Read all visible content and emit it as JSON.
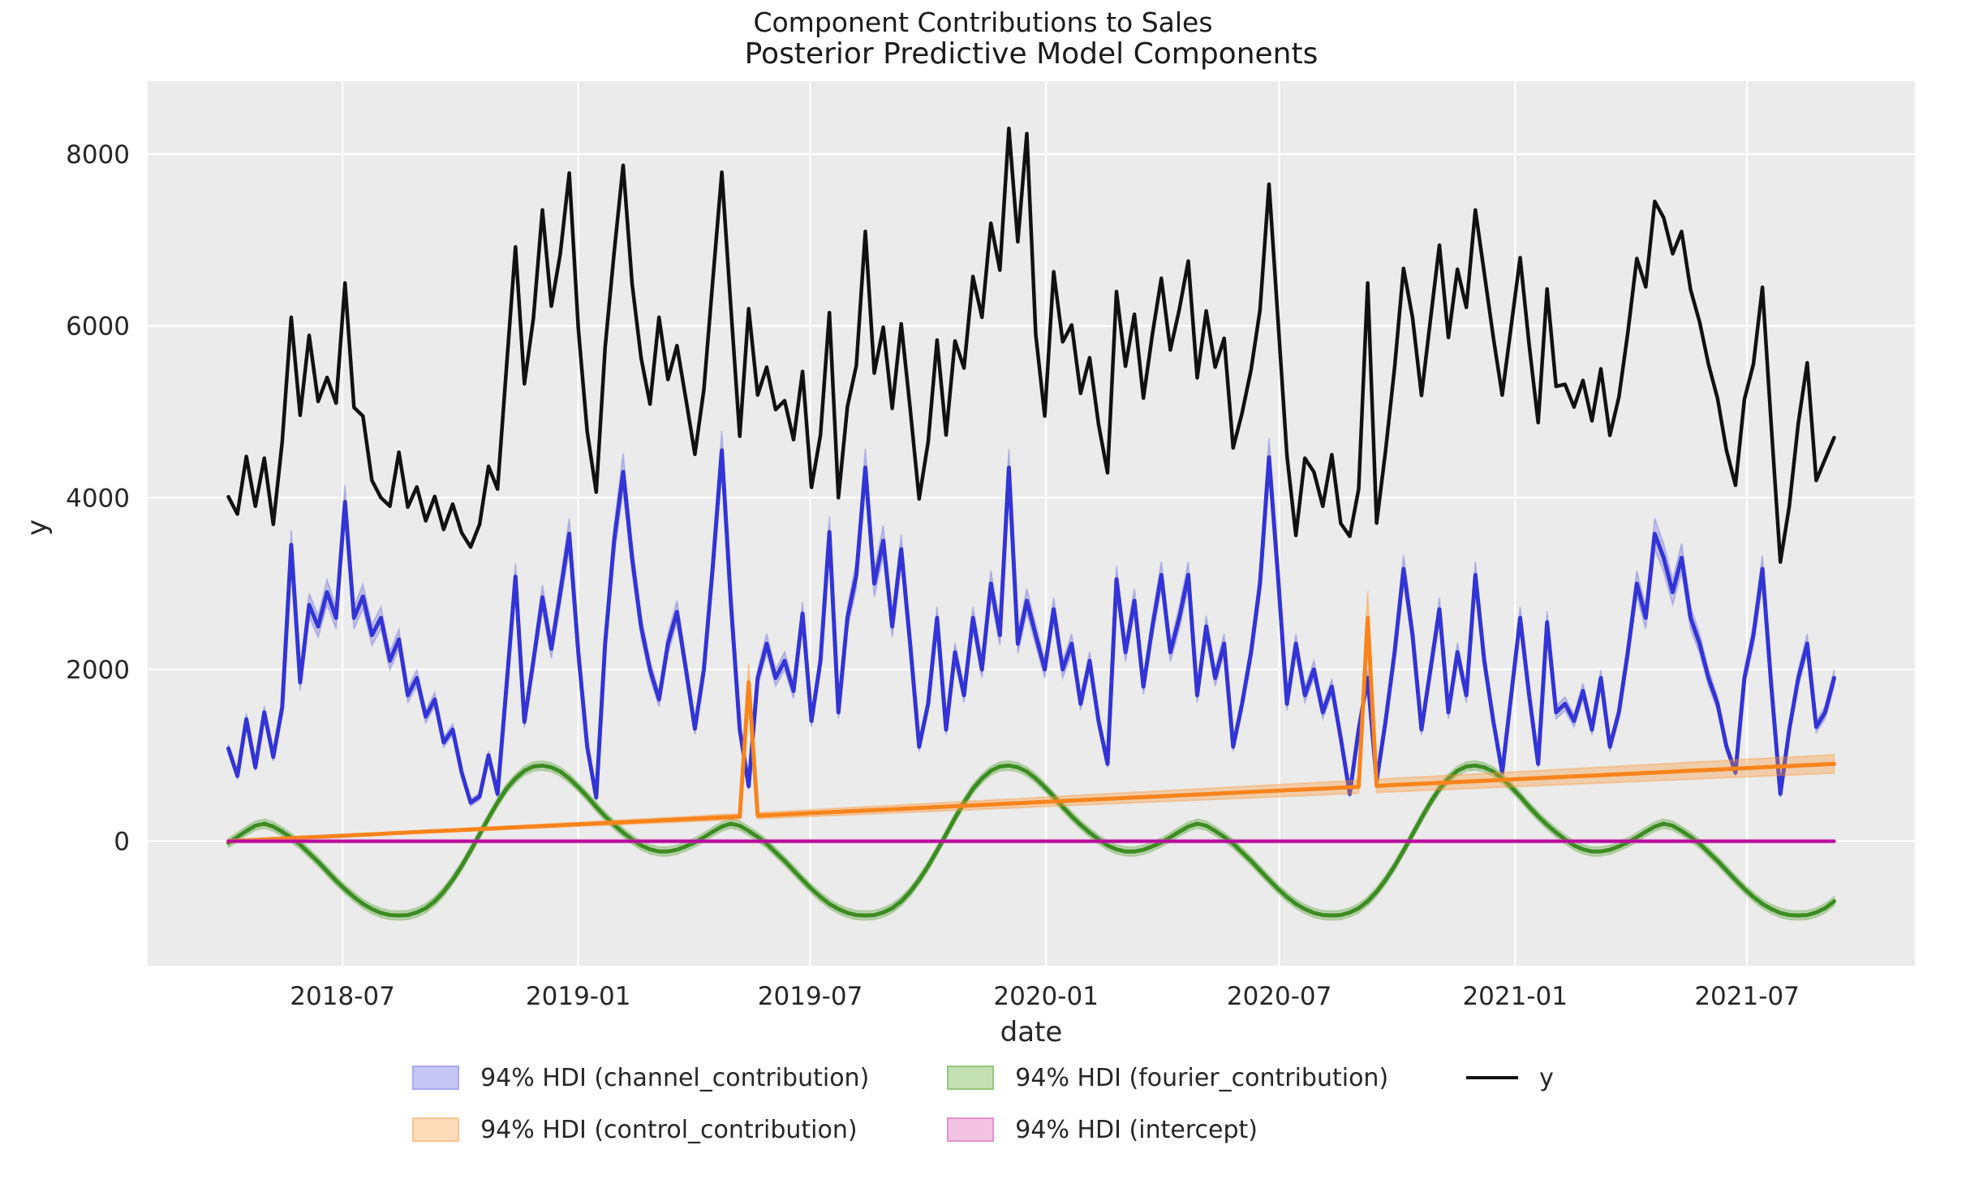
{
  "figure": {
    "suptitle": "Component Contributions to Sales",
    "title": "Posterior Predictive Model Components",
    "xlabel": "date",
    "ylabel": "y"
  },
  "legend": {
    "items": [
      {
        "id": "channel",
        "label": "94% HDI (channel_contribution)",
        "swatch_fill": "#c6c6f4",
        "swatch_edge": "#a9a9ee",
        "kind": "patch"
      },
      {
        "id": "control",
        "label": "94% HDI (control_contribution)",
        "swatch_fill": "#fcdcb9",
        "swatch_edge": "#f7c48e",
        "kind": "patch"
      },
      {
        "id": "fourier",
        "label": "94% HDI (fourier_contribution)",
        "swatch_fill": "#c3e0b3",
        "swatch_edge": "#94c77f",
        "kind": "patch"
      },
      {
        "id": "intercept",
        "label": "94% HDI (intercept)",
        "swatch_fill": "#f2c3e2",
        "swatch_edge": "#e391cb",
        "kind": "patch"
      },
      {
        "id": "y",
        "label": "y",
        "swatch_fill": "#111111",
        "swatch_edge": "#111111",
        "kind": "line"
      }
    ]
  },
  "chart_data": {
    "type": "line",
    "suptitle": "Component Contributions to Sales",
    "title": "Posterior Predictive Model Components",
    "xlabel": "date",
    "ylabel": "y",
    "grid": true,
    "legend_position": "below",
    "theme": {
      "axes_bg": "#ebebeb",
      "grid_color": "#ffffff",
      "tick_color": "#262626"
    },
    "x": {
      "start_date": "2018-04-03",
      "freq_days": 7,
      "n": 180
    },
    "xlim_days": [
      -63,
      1316
    ],
    "ylim": [
      -1450,
      8850
    ],
    "yticks": [
      0,
      2000,
      4000,
      6000,
      8000
    ],
    "xticks": [
      {
        "day": 89,
        "label": "2018-07"
      },
      {
        "day": 273,
        "label": "2019-01"
      },
      {
        "day": 454,
        "label": "2019-07"
      },
      {
        "day": 638,
        "label": "2020-01"
      },
      {
        "day": 820,
        "label": "2020-07"
      },
      {
        "day": 1004,
        "label": "2021-01"
      },
      {
        "day": 1185,
        "label": "2021-07"
      }
    ],
    "draw_order": [
      "channel_contribution",
      "fourier_contribution",
      "control_contribution",
      "intercept",
      "y"
    ],
    "series": [
      {
        "name": "y",
        "legend": "y",
        "color": "#111111",
        "linewidth": 4.5,
        "values": [
          4010,
          3810,
          4480,
          3900,
          4460,
          3690,
          4650,
          6100,
          4960,
          5890,
          5120,
          5400,
          5100,
          6500,
          5050,
          4950,
          4200,
          4000,
          3900,
          4530,
          3890,
          4125,
          3730,
          4015,
          3630,
          3925,
          3590,
          3425,
          3690,
          4365,
          4100,
          5515,
          6920,
          5325,
          6090,
          7350,
          6230,
          6845,
          7780,
          5975,
          4770,
          4065,
          5750,
          6855,
          7870,
          6495,
          5630,
          5090,
          6100,
          5375,
          5770,
          5145,
          4505,
          5260,
          6530,
          7790,
          6235,
          4715,
          6200,
          5195,
          5520,
          5025,
          5130,
          4675,
          5470,
          4120,
          4730,
          6155,
          4000,
          5060,
          5540,
          7100,
          5450,
          5985,
          5040,
          6025,
          5040,
          3985,
          4650,
          5835,
          4730,
          5825,
          5510,
          6575,
          6100,
          7195,
          6650,
          8300,
          6980,
          8240,
          5900,
          4950,
          6630,
          5815,
          6010,
          5215,
          5630,
          4855,
          4290,
          6400,
          5530,
          6135,
          5160,
          5905,
          6555,
          5720,
          6190,
          6755,
          5395,
          6175,
          5520,
          5855,
          4580,
          4985,
          5490,
          6185,
          7650,
          6080,
          4490,
          3560,
          4460,
          4300,
          3900,
          4500,
          3700,
          3550,
          4100,
          6500,
          3705,
          4550,
          5515,
          6670,
          6095,
          5190,
          6075,
          6940,
          5865,
          6660,
          6215,
          7350,
          6615,
          5870,
          5195,
          6000,
          6795,
          5780,
          4875,
          6430,
          5295,
          5320,
          5055,
          5365,
          4895,
          5500,
          4725,
          5170,
          5920,
          6785,
          6455,
          7450,
          7260,
          6840,
          7100,
          6420,
          6045,
          5550,
          5155,
          4550,
          4145,
          5145,
          5555,
          6450,
          4825,
          3250,
          3900,
          4865,
          5570,
          4200,
          4450,
          4700
        ]
      },
      {
        "name": "channel_contribution",
        "legend": "94% HDI (channel_contribution)",
        "color": "#3333d6",
        "band_fill": "rgba(85,85,220,0.28)",
        "linewidth": 5,
        "hdi_halfwidth": {
          "fraction": 0.05,
          "min": 40
        },
        "values": [
          1080,
          760,
          1420,
          860,
          1500,
          980,
          1560,
          3450,
          1850,
          2750,
          2500,
          2900,
          2600,
          3950,
          2600,
          2850,
          2400,
          2600,
          2100,
          2350,
          1700,
          1900,
          1450,
          1650,
          1150,
          1300,
          800,
          450,
          520,
          1000,
          550,
          1800,
          3080,
          1390,
          2100,
          2840,
          2240,
          2900,
          3580,
          2200,
          1100,
          510,
          2300,
          3500,
          4300,
          3300,
          2500,
          2000,
          1650,
          2300,
          2670,
          2000,
          1310,
          2000,
          3200,
          4550,
          2800,
          1300,
          640,
          1900,
          2300,
          1900,
          2100,
          1750,
          2650,
          1400,
          2100,
          3600,
          1500,
          2600,
          3100,
          4350,
          3000,
          3500,
          2500,
          3400,
          2300,
          1100,
          1600,
          2600,
          1300,
          2200,
          1700,
          2600,
          2000,
          3000,
          2400,
          4350,
          2300,
          2800,
          2400,
          2000,
          2700,
          2000,
          2300,
          1600,
          2100,
          1400,
          900,
          3050,
          2200,
          2800,
          1800,
          2500,
          3100,
          2200,
          2600,
          3100,
          1700,
          2500,
          1900,
          2300,
          1100,
          1600,
          2200,
          3000,
          4470,
          3100,
          1600,
          2300,
          1700,
          2000,
          1500,
          1800,
          1200,
          550,
          1300,
          1900,
          700,
          1400,
          2200,
          3170,
          2400,
          1300,
          2000,
          2700,
          1500,
          2200,
          1700,
          3100,
          2100,
          1400,
          800,
          1700,
          2600,
          1700,
          900,
          2550,
          1500,
          1600,
          1400,
          1750,
          1300,
          1900,
          1100,
          1500,
          2200,
          3000,
          2600,
          3580,
          3300,
          2900,
          3300,
          2600,
          2300,
          1900,
          1600,
          1100,
          800,
          1900,
          2400,
          3170,
          1800,
          550,
          1300,
          1900,
          2300,
          1330,
          1500,
          1900
        ]
      },
      {
        "name": "control_contribution",
        "legend": "94% HDI (control_contribution)",
        "color": "#f8841b",
        "band_fill": "rgba(248,150,50,0.35)",
        "linewidth": 5,
        "hdi_halfwidth": {
          "fraction": 0.12,
          "min": 12
        },
        "ramp": {
          "start": 0,
          "end": 900,
          "spikes": [
            {
              "index": 58,
              "value": 1850
            },
            {
              "index": 127,
              "value": 2600
            }
          ]
        }
      },
      {
        "name": "fourier_contribution",
        "legend": "94% HDI (fourier_contribution)",
        "color": "#3c8c22",
        "band_fill": "rgba(100,170,70,0.35)",
        "linewidth": 5,
        "hdi_halfwidth": {
          "abs": 52
        },
        "values": [
          -20,
          50,
          120,
          180,
          205,
          170,
          110,
          40,
          -40,
          -140,
          -240,
          -350,
          -460,
          -560,
          -650,
          -730,
          -790,
          -835,
          -860,
          -865,
          -860,
          -830,
          -780,
          -700,
          -590,
          -450,
          -290,
          -110,
          80,
          270,
          450,
          610,
          730,
          820,
          870,
          880,
          860,
          810,
          730,
          630,
          520,
          400,
          290,
          190,
          100,
          20,
          -50,
          -95,
          -120,
          -120,
          -100,
          -60,
          -15,
          45,
          110,
          170,
          205,
          180,
          120,
          50,
          -30,
          -130,
          -230,
          -340,
          -450,
          -555,
          -650,
          -730,
          -790,
          -835,
          -860,
          -865,
          -860,
          -830,
          -780,
          -700,
          -590,
          -450,
          -290,
          -110,
          80,
          270,
          450,
          610,
          730,
          820,
          870,
          880,
          860,
          810,
          730,
          630,
          520,
          400,
          290,
          190,
          100,
          20,
          -50,
          -95,
          -120,
          -120,
          -100,
          -60,
          -15,
          45,
          110,
          170,
          205,
          180,
          120,
          50,
          -30,
          -130,
          -230,
          -340,
          -450,
          -555,
          -650,
          -730,
          -790,
          -835,
          -860,
          -865,
          -860,
          -830,
          -780,
          -700,
          -590,
          -450,
          -290,
          -110,
          80,
          270,
          450,
          610,
          730,
          820,
          870,
          880,
          860,
          810,
          730,
          630,
          520,
          400,
          290,
          190,
          100,
          20,
          -50,
          -95,
          -120,
          -120,
          -100,
          -60,
          -15,
          45,
          110,
          170,
          205,
          180,
          120,
          50,
          -30,
          -130,
          -230,
          -340,
          -450,
          -555,
          -650,
          -730,
          -790,
          -835,
          -860,
          -865,
          -860,
          -830,
          -780,
          -700
        ]
      },
      {
        "name": "intercept",
        "legend": "94% HDI (intercept)",
        "color": "#b8089d",
        "band_fill": "rgba(220,100,200,0.35)",
        "linewidth": 4,
        "hdi_halfwidth": {
          "abs": 18
        },
        "constant": 0
      }
    ]
  }
}
